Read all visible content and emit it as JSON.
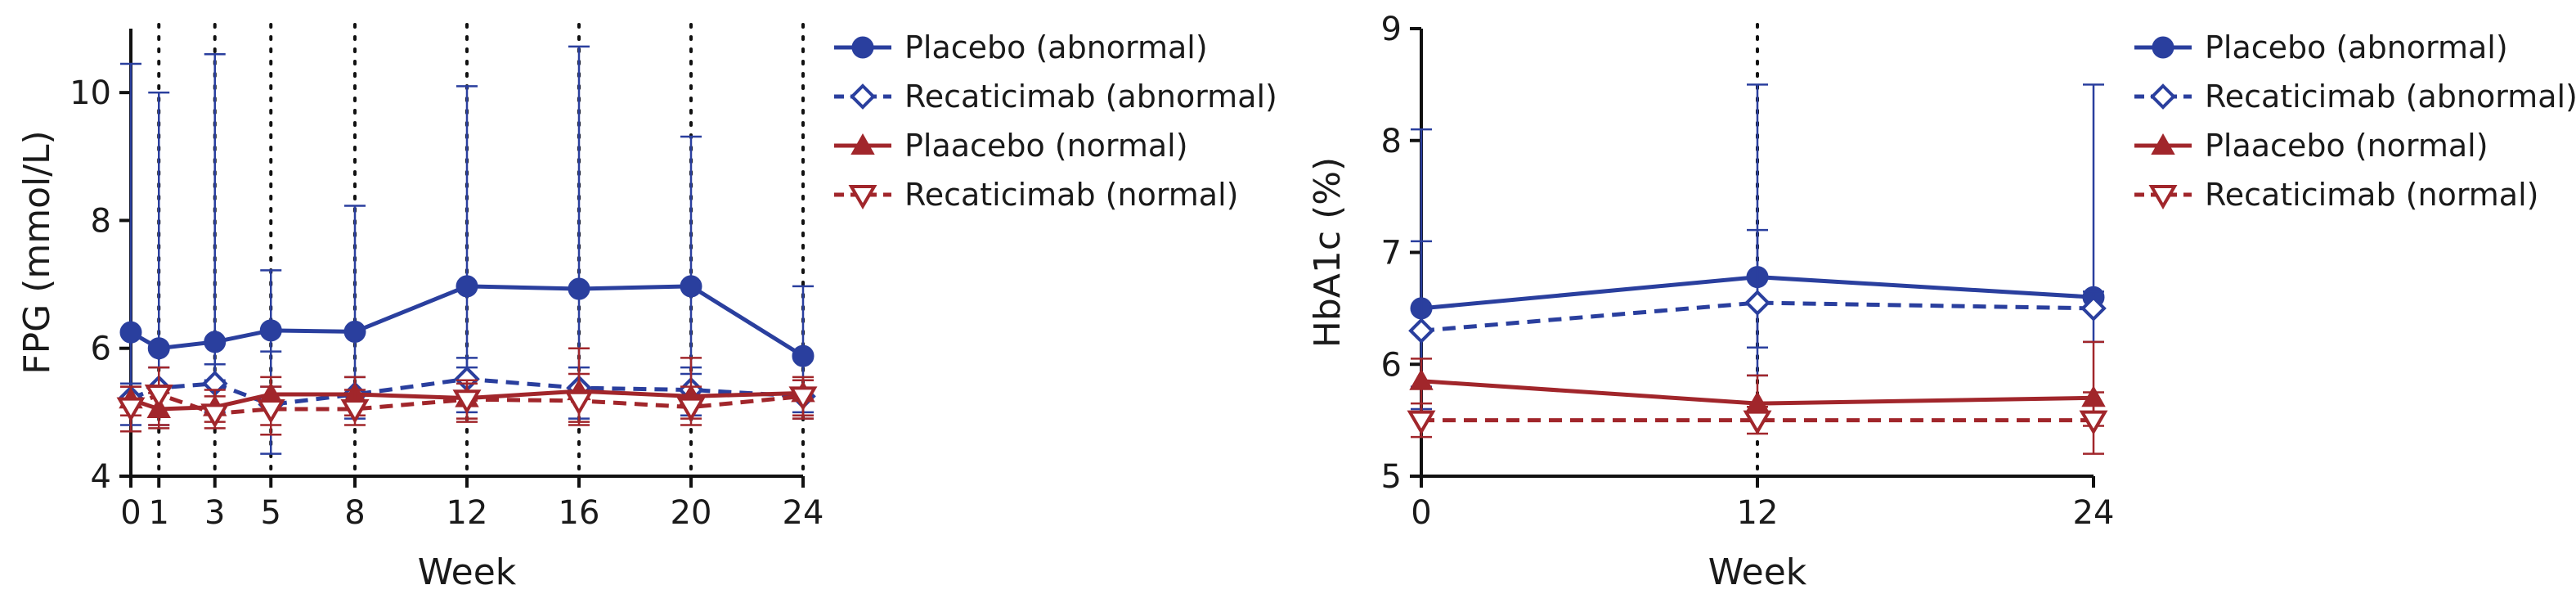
{
  "chart_data": [
    {
      "type": "line",
      "xlabel": "Week",
      "ylabel": "FPG (mmol/L)",
      "xlim": [
        0,
        24
      ],
      "ylim": [
        4,
        11
      ],
      "x_ticks": [
        0,
        1,
        3,
        5,
        8,
        12,
        16,
        20,
        24
      ],
      "y_ticks": [
        4,
        6,
        8,
        10
      ],
      "reference_lines_x": [
        1,
        3,
        5,
        8,
        12,
        16,
        20,
        24
      ],
      "legend_position": "right",
      "series": [
        {
          "name": "Placebo (abnormal)",
          "color": "#2a3f9e",
          "dash": "solid",
          "marker": "circle",
          "x": [
            0,
            1,
            3,
            5,
            8,
            12,
            16,
            20,
            24
          ],
          "y": [
            6.25,
            6.0,
            6.1,
            6.28,
            6.26,
            6.97,
            6.93,
            6.97,
            5.88
          ],
          "err_lo": [
            5.2,
            5.3,
            5.5,
            5.4,
            5.3,
            5.7,
            5.4,
            5.6,
            5.0
          ],
          "err_hi": [
            10.45,
            10.0,
            10.6,
            7.22,
            8.23,
            10.1,
            10.72,
            9.31,
            6.97
          ]
        },
        {
          "name": "Recaticimab (abnormal)",
          "color": "#2a3f9e",
          "dash": "dashed",
          "marker": "diamond",
          "x": [
            0,
            1,
            3,
            5,
            8,
            12,
            16,
            20,
            24
          ],
          "y": [
            5.22,
            5.38,
            5.45,
            5.12,
            5.28,
            5.52,
            5.38,
            5.35,
            5.25
          ],
          "err_lo": [
            4.8,
            4.8,
            5.0,
            4.35,
            4.9,
            5.0,
            4.9,
            4.95,
            4.9
          ],
          "err_hi": [
            5.45,
            5.7,
            5.75,
            5.95,
            5.55,
            5.85,
            5.7,
            5.7,
            5.5
          ]
        },
        {
          "name": "Plaacebo (normal)",
          "color": "#a1262b",
          "dash": "solid",
          "marker": "triangle-up",
          "x": [
            0,
            1,
            3,
            5,
            8,
            12,
            16,
            20,
            24
          ],
          "y": [
            5.2,
            5.05,
            5.08,
            5.28,
            5.28,
            5.22,
            5.33,
            5.25,
            5.3
          ],
          "err_lo": [
            4.95,
            4.75,
            4.85,
            4.8,
            4.95,
            4.9,
            4.85,
            4.9,
            4.95
          ],
          "err_hi": [
            5.4,
            5.3,
            5.35,
            5.55,
            5.55,
            5.5,
            6.0,
            5.85,
            5.55
          ]
        },
        {
          "name": "Recaticimab (normal)",
          "color": "#a1262b",
          "dash": "dashed",
          "marker": "triangle-down",
          "x": [
            0,
            1,
            3,
            5,
            8,
            12,
            16,
            20,
            24
          ],
          "y": [
            5.08,
            5.28,
            4.98,
            5.05,
            5.05,
            5.2,
            5.18,
            5.08,
            5.25
          ],
          "err_lo": [
            4.7,
            4.8,
            4.75,
            4.65,
            4.8,
            4.85,
            4.8,
            4.8,
            4.9
          ],
          "err_hi": [
            5.4,
            5.7,
            5.25,
            5.4,
            5.35,
            5.45,
            5.6,
            5.4,
            5.5
          ]
        }
      ]
    },
    {
      "type": "line",
      "xlabel": "Week",
      "ylabel": "HbA1c (%)",
      "xlim": [
        0,
        24
      ],
      "ylim": [
        5,
        9
      ],
      "x_ticks": [
        0,
        12,
        24
      ],
      "y_ticks": [
        5,
        6,
        7,
        8,
        9
      ],
      "reference_lines_x": [
        12
      ],
      "legend_position": "right",
      "series": [
        {
          "name": "Placebo (abnormal)",
          "color": "#2a3f9e",
          "dash": "solid",
          "marker": "circle",
          "x": [
            0,
            12,
            24
          ],
          "y": [
            6.5,
            6.78,
            6.6
          ],
          "err_lo": [
            5.8,
            5.9,
            6.5
          ],
          "err_hi": [
            8.1,
            8.5,
            8.5
          ]
        },
        {
          "name": "Recaticimab (abnormal)",
          "color": "#2a3f9e",
          "dash": "dashed",
          "marker": "diamond",
          "x": [
            0,
            12,
            24
          ],
          "y": [
            6.3,
            6.55,
            6.5
          ],
          "err_lo": [
            5.6,
            6.15,
            6.2
          ],
          "err_hi": [
            7.1,
            7.2,
            6.65
          ]
        },
        {
          "name": "Plaacebo (normal)",
          "color": "#a1262b",
          "dash": "solid",
          "marker": "triangle-up",
          "x": [
            0,
            12,
            24
          ],
          "y": [
            5.85,
            5.65,
            5.7
          ],
          "err_lo": [
            5.55,
            5.5,
            5.45
          ],
          "err_hi": [
            6.05,
            5.9,
            6.2
          ]
        },
        {
          "name": "Recaticimab (normal)",
          "color": "#a1262b",
          "dash": "dashed",
          "marker": "triangle-down",
          "x": [
            0,
            12,
            24
          ],
          "y": [
            5.5,
            5.5,
            5.5
          ],
          "err_lo": [
            5.35,
            5.38,
            5.2
          ],
          "err_hi": [
            5.65,
            5.62,
            5.75
          ]
        }
      ]
    }
  ]
}
